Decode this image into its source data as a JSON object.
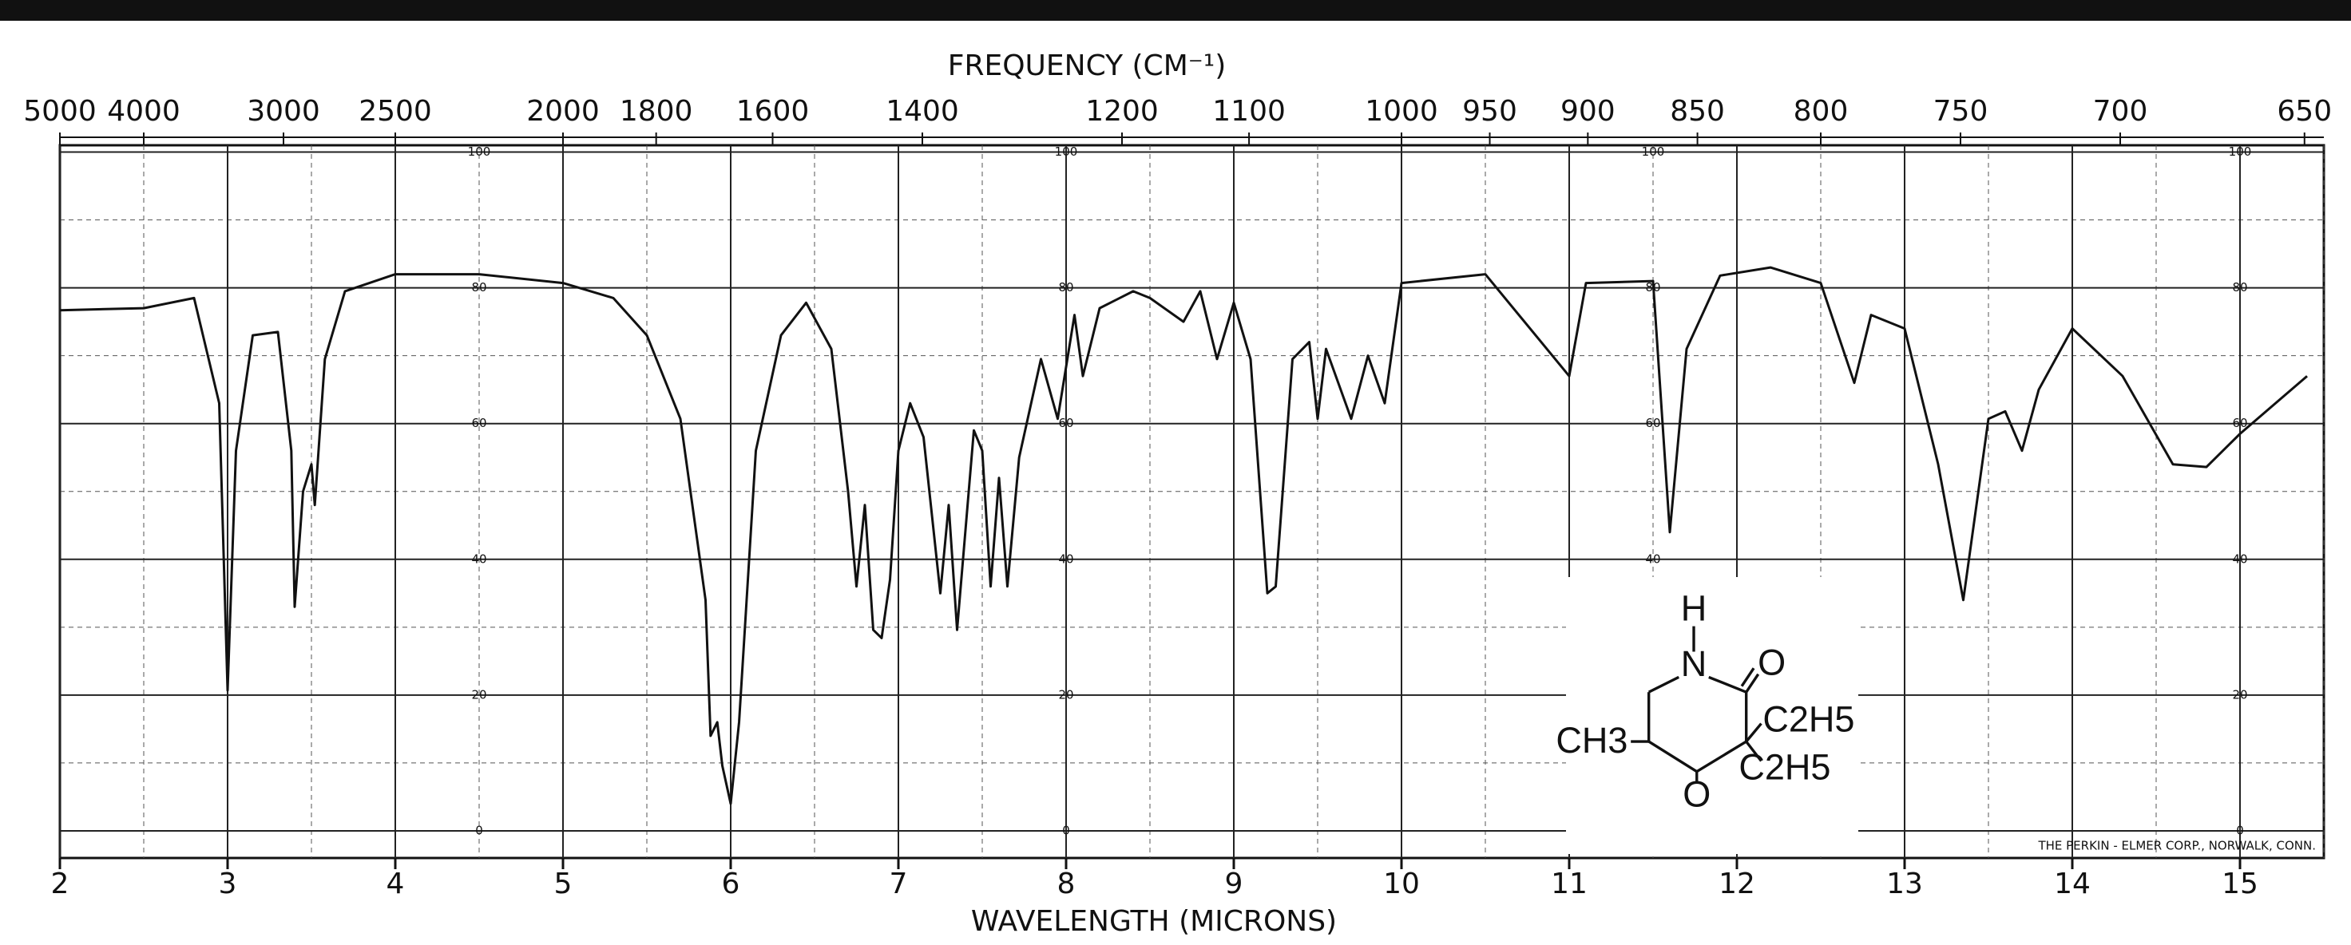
{
  "chart_data": {
    "type": "line",
    "title": "FREQUENCY (CM⁻¹)",
    "x_label": "WAVELENGTH (MICRONS)",
    "footer": "THE PERKIN - ELMER CORP., NORWALK, CONN.",
    "color": "#111111",
    "xlim": [
      2,
      15.5
    ],
    "ylim": [
      -4,
      101
    ],
    "xticks": [
      2,
      3,
      4,
      5,
      6,
      7,
      8,
      9,
      10,
      11,
      12,
      13,
      14,
      15
    ],
    "x_minor_ticks": [
      2.5,
      3.5,
      4.5,
      5.5,
      6.5,
      7.5,
      8.5,
      9.5,
      10.5,
      11.5,
      12.5,
      13.5,
      14.5,
      15.5
    ],
    "yticks": [
      0,
      20,
      40,
      60,
      80,
      100
    ],
    "y_minor_ticks": [
      10,
      30,
      50,
      70,
      90
    ],
    "x2ticks": [
      5000,
      4000,
      3000,
      2500,
      2000,
      1800,
      1600,
      1400,
      1200,
      1100,
      1000,
      950,
      900,
      850,
      800,
      750,
      700,
      650
    ],
    "grid": true,
    "x": [
      2.0,
      2.5,
      2.8,
      2.95,
      3.0,
      3.05,
      3.15,
      3.3,
      3.38,
      3.4,
      3.45,
      3.5,
      3.52,
      3.58,
      3.7,
      4.0,
      4.5,
      5.0,
      5.3,
      5.5,
      5.7,
      5.85,
      5.88,
      5.92,
      5.95,
      6.0,
      6.05,
      6.15,
      6.3,
      6.45,
      6.6,
      6.7,
      6.75,
      6.8,
      6.85,
      6.9,
      6.95,
      7.0,
      7.07,
      7.15,
      7.25,
      7.3,
      7.35,
      7.45,
      7.5,
      7.55,
      7.6,
      7.65,
      7.72,
      7.85,
      7.95,
      8.05,
      8.1,
      8.2,
      8.4,
      8.5,
      8.7,
      8.8,
      8.9,
      9.0,
      9.1,
      9.2,
      9.25,
      9.35,
      9.45,
      9.5,
      9.55,
      9.7,
      9.8,
      9.9,
      10.0,
      10.5,
      11.0,
      11.1,
      11.5,
      11.6,
      11.7,
      11.9,
      12.2,
      12.5,
      12.7,
      12.8,
      13.0,
      13.2,
      13.35,
      13.5,
      13.6,
      13.7,
      13.8,
      14.0,
      14.3,
      14.6,
      14.8,
      15.0,
      15.4
    ],
    "values": [
      76.7,
      77,
      78.5,
      63,
      20.7,
      56,
      73,
      73.5,
      56,
      33,
      50,
      54,
      48,
      69.5,
      79.5,
      82,
      82,
      80.7,
      78.5,
      73,
      60.7,
      34,
      14,
      16,
      9.6,
      4,
      16,
      56,
      73,
      77.8,
      71,
      50,
      36,
      48,
      29.6,
      28.4,
      37,
      56,
      63,
      58,
      35,
      48,
      29.6,
      59,
      56,
      36,
      52,
      36,
      55,
      69.5,
      60.7,
      76,
      67,
      77,
      79.5,
      78.5,
      75,
      79.5,
      69.5,
      77.8,
      69.5,
      35,
      36,
      69.5,
      72,
      60.7,
      71,
      60.7,
      70,
      63,
      80.7,
      82,
      67,
      80.7,
      81,
      44,
      71,
      81.8,
      83,
      80.7,
      66,
      76,
      74,
      54,
      34,
      60.7,
      61.8,
      56,
      65,
      74,
      67,
      54,
      53.6,
      58.5,
      67
    ],
    "structure": {
      "h": "H",
      "n": "N",
      "o_amide": "O",
      "ethyl_1": "C2H5",
      "ethyl_2": "C2H5",
      "methyl": "CH3",
      "o_ketone": "O"
    }
  }
}
